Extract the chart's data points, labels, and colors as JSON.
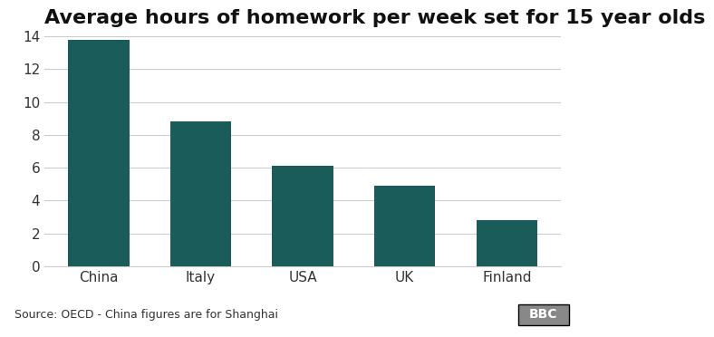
{
  "title": "Average hours of homework per week set for 15 year olds",
  "categories": [
    "China",
    "Italy",
    "USA",
    "UK",
    "Finland"
  ],
  "values": [
    13.8,
    8.8,
    6.1,
    4.9,
    2.8
  ],
  "bar_color": "#1a5c5a",
  "background_color": "#ffffff",
  "plot_background": "#ffffff",
  "ylim": [
    0,
    14
  ],
  "yticks": [
    0,
    2,
    4,
    6,
    8,
    10,
    12,
    14
  ],
  "grid_color": "#cccccc",
  "source_text": "Source: OECD - China figures are for Shanghai",
  "bbc_text": "BBC",
  "title_fontsize": 16,
  "tick_fontsize": 11,
  "source_fontsize": 9,
  "footer_bg": "#dedede",
  "bbc_bg": "#888888"
}
